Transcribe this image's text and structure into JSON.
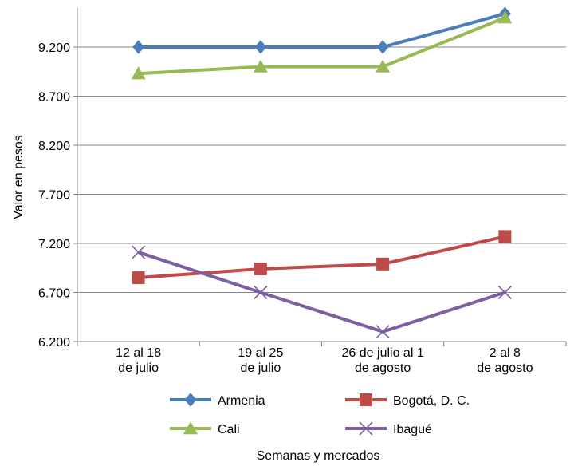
{
  "chart_data": {
    "type": "line",
    "title": "",
    "xlabel": "Semanas y mercados",
    "ylabel": "Valor en pesos",
    "ylim": [
      6200,
      9700
    ],
    "yticks": [
      6200,
      6700,
      7200,
      7700,
      8200,
      8700,
      9200
    ],
    "ytick_labels": [
      "6.200",
      "6.700",
      "7.200",
      "7.700",
      "8.200",
      "8.700",
      "9.200"
    ],
    "categories": [
      [
        "12 al 18",
        "de julio"
      ],
      [
        "19 al 25",
        "de julio"
      ],
      [
        "26 de julio al 1",
        "de agosto"
      ],
      [
        "2 al 8",
        "de agosto"
      ]
    ],
    "grid": true,
    "legend_position": "bottom",
    "series": [
      {
        "name": "Armenia",
        "values": [
          9200,
          9200,
          9200,
          9540
        ],
        "color": "#4a7ebb",
        "marker": "diamond"
      },
      {
        "name": "Bogotá, D. C.",
        "values": [
          6850,
          6940,
          6990,
          7270
        ],
        "color": "#be4b48",
        "marker": "square"
      },
      {
        "name": "Cali",
        "values": [
          8930,
          9000,
          9000,
          9500
        ],
        "color": "#98b954",
        "marker": "triangle"
      },
      {
        "name": "Ibagué",
        "values": [
          7110,
          6700,
          6300,
          6700
        ],
        "color": "#7d60a0",
        "marker": "x"
      }
    ]
  }
}
